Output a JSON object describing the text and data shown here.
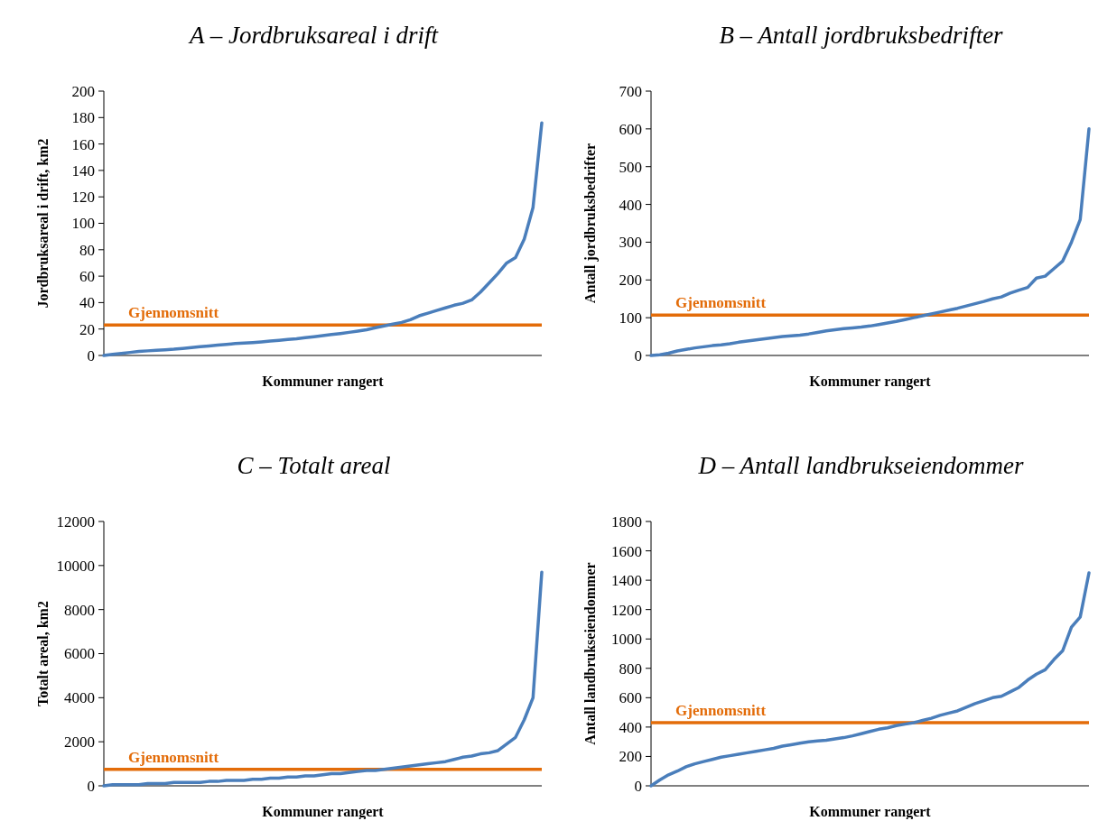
{
  "chart_data": [
    {
      "type": "line",
      "title": "A – Jordbruksareal i drift",
      "xlabel": "Kommuner rangert",
      "ylabel": "Jordbruksareal i drift, km2",
      "categories": [
        null,
        null,
        null,
        null,
        null,
        null,
        null,
        null,
        null,
        null,
        null,
        null,
        null,
        null,
        null,
        null,
        null,
        null,
        null,
        null,
        null,
        null,
        null,
        null,
        null,
        null,
        null,
        null,
        null,
        null,
        null,
        null,
        null,
        null,
        null,
        null,
        null,
        null,
        null,
        null,
        null,
        null,
        null,
        null,
        null,
        null,
        null,
        null,
        null,
        null,
        null
      ],
      "series": [
        {
          "color": "#4a7ebb",
          "values": [
            0,
            0.8,
            1.6,
            2.3,
            3,
            3.5,
            3.9,
            4.3,
            4.7,
            5.3,
            6,
            6.6,
            7.2,
            7.8,
            8.4,
            9,
            9.4,
            9.8,
            10.3,
            10.9,
            11.5,
            12.1,
            12.7,
            13.5,
            14.2,
            15,
            15.8,
            16.6,
            17.5,
            18.5,
            19.5,
            21,
            22.3,
            23.7,
            25,
            27,
            30,
            32,
            34,
            36,
            38,
            39.5,
            42,
            48,
            55,
            62,
            70,
            74,
            88,
            112,
            176
          ]
        }
      ],
      "ylim": [
        0,
        200
      ],
      "yticks": [
        0,
        20,
        40,
        60,
        80,
        100,
        120,
        140,
        160,
        180,
        200
      ],
      "tick_labels": "y",
      "ref_lines": [
        {
          "axis": "y",
          "value": 23,
          "label": "Gjennomsnitt",
          "color": "#e36c09"
        }
      ]
    },
    {
      "type": "line",
      "title": "B – Antall jordbruksbedrifter",
      "xlabel": "Kommuner rangert",
      "ylabel": "Antall jordbruksbedrifter",
      "categories": [
        null,
        null,
        null,
        null,
        null,
        null,
        null,
        null,
        null,
        null,
        null,
        null,
        null,
        null,
        null,
        null,
        null,
        null,
        null,
        null,
        null,
        null,
        null,
        null,
        null,
        null,
        null,
        null,
        null,
        null,
        null,
        null,
        null,
        null,
        null,
        null,
        null,
        null,
        null,
        null,
        null,
        null,
        null,
        null,
        null,
        null,
        null,
        null,
        null,
        null,
        null
      ],
      "series": [
        {
          "color": "#4a7ebb",
          "values": [
            0,
            2,
            6,
            12,
            16,
            20,
            23,
            26,
            28,
            31,
            35,
            38,
            41,
            44,
            47,
            50,
            52,
            54,
            57,
            61,
            65,
            68,
            71,
            73,
            75,
            78,
            82,
            86,
            90,
            95,
            100,
            105,
            110,
            115,
            120,
            125,
            131,
            137,
            143,
            150,
            155,
            165,
            173,
            180,
            205,
            210,
            230,
            250,
            300,
            360,
            600
          ]
        }
      ],
      "ylim": [
        0,
        700
      ],
      "yticks": [
        0,
        100,
        200,
        300,
        400,
        500,
        600,
        700
      ],
      "tick_labels": "y",
      "ref_lines": [
        {
          "axis": "y",
          "value": 107,
          "label": "Gjennomsnitt",
          "color": "#e36c09"
        }
      ]
    },
    {
      "type": "line",
      "title": "C – Totalt areal",
      "xlabel": "Kommuner rangert",
      "ylabel": "Totalt areal, km2",
      "categories": [
        null,
        null,
        null,
        null,
        null,
        null,
        null,
        null,
        null,
        null,
        null,
        null,
        null,
        null,
        null,
        null,
        null,
        null,
        null,
        null,
        null,
        null,
        null,
        null,
        null,
        null,
        null,
        null,
        null,
        null,
        null,
        null,
        null,
        null,
        null,
        null,
        null,
        null,
        null,
        null,
        null,
        null,
        null,
        null,
        null,
        null,
        null,
        null,
        null,
        null,
        null
      ],
      "series": [
        {
          "color": "#4a7ebb",
          "values": [
            0,
            50,
            50,
            50,
            50,
            100,
            100,
            100,
            150,
            150,
            150,
            150,
            200,
            200,
            250,
            250,
            250,
            300,
            300,
            350,
            350,
            400,
            400,
            450,
            450,
            500,
            550,
            550,
            600,
            650,
            700,
            700,
            750,
            800,
            850,
            900,
            950,
            1000,
            1050,
            1100,
            1200,
            1300,
            1350,
            1450,
            1500,
            1600,
            1900,
            2200,
            3000,
            4000,
            9700
          ]
        }
      ],
      "ylim": [
        0,
        12000
      ],
      "yticks": [
        0,
        2000,
        4000,
        6000,
        8000,
        10000,
        12000
      ],
      "tick_labels": "y",
      "ref_lines": [
        {
          "axis": "y",
          "value": 750,
          "label": "Gjennomsnitt",
          "color": "#e36c09"
        }
      ]
    },
    {
      "type": "line",
      "title": "D – Antall landbrukseiendommer",
      "xlabel": "Kommuner rangert",
      "ylabel": "Antall landbrukseiendommer",
      "categories": [
        null,
        null,
        null,
        null,
        null,
        null,
        null,
        null,
        null,
        null,
        null,
        null,
        null,
        null,
        null,
        null,
        null,
        null,
        null,
        null,
        null,
        null,
        null,
        null,
        null,
        null,
        null,
        null,
        null,
        null,
        null,
        null,
        null,
        null,
        null,
        null,
        null,
        null,
        null,
        null,
        null,
        null,
        null,
        null,
        null,
        null,
        null,
        null,
        null,
        null,
        null
      ],
      "series": [
        {
          "color": "#4a7ebb",
          "values": [
            0,
            40,
            75,
            100,
            130,
            150,
            165,
            180,
            195,
            205,
            215,
            225,
            235,
            245,
            255,
            270,
            280,
            290,
            300,
            305,
            310,
            320,
            328,
            340,
            355,
            370,
            385,
            395,
            410,
            420,
            430,
            445,
            460,
            480,
            495,
            510,
            535,
            560,
            580,
            600,
            610,
            640,
            670,
            720,
            760,
            790,
            860,
            920,
            1080,
            1150,
            1450
          ]
        }
      ],
      "ylim": [
        0,
        1800
      ],
      "yticks": [
        0,
        200,
        400,
        600,
        800,
        1000,
        1200,
        1400,
        1600,
        1800
      ],
      "tick_labels": "y",
      "ref_lines": [
        {
          "axis": "y",
          "value": 430,
          "label": "Gjennomsnitt",
          "color": "#e36c09"
        }
      ]
    }
  ]
}
